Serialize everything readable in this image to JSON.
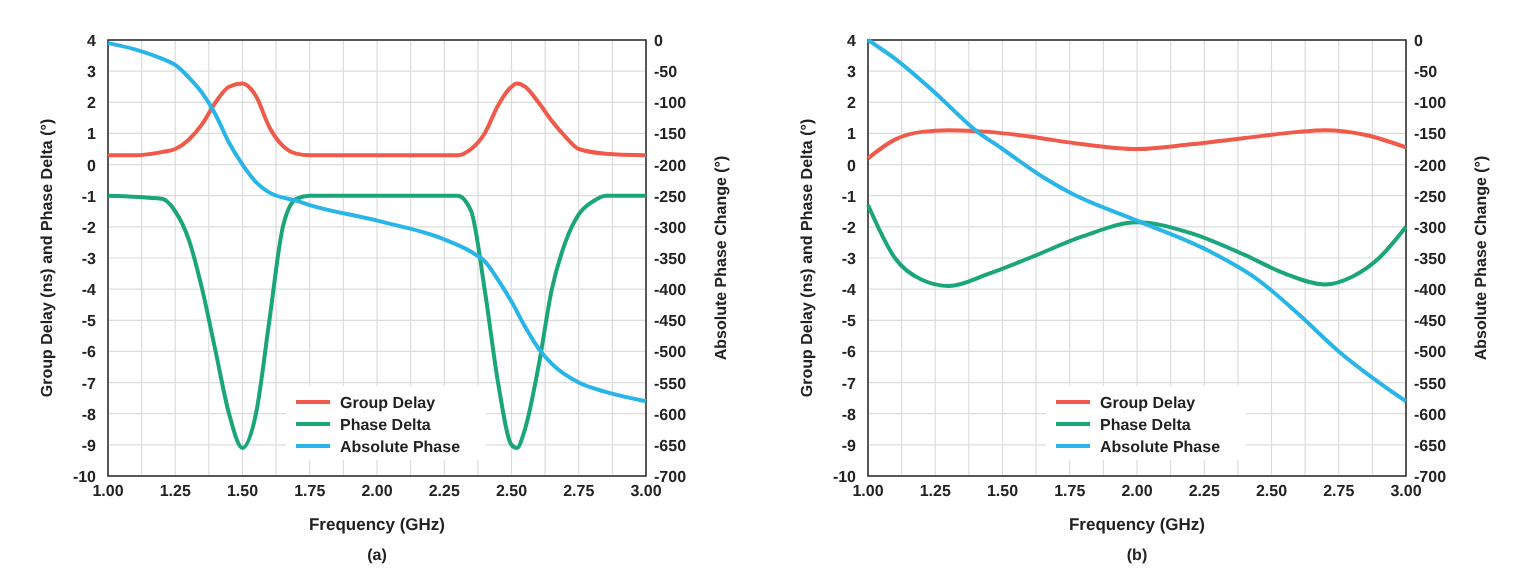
{
  "chart_data": [
    {
      "type": "line",
      "xlabel": "Frequency (GHz)",
      "ylabel": "Group Delay (ns) and Phase Delta (°)",
      "y2label": "Absolute Phase Change (°)",
      "annotations": [
        "(a)"
      ],
      "grid": true,
      "legend": "bottom",
      "line_style": "solid",
      "xlim": [
        1,
        3
      ],
      "xticks": [
        {
          "value": 1,
          "label": "1.00"
        },
        {
          "value": 1.125,
          "label": null
        },
        {
          "value": 1.25,
          "label": "1.25"
        },
        {
          "value": 1.375,
          "label": null
        },
        {
          "value": 1.5,
          "label": "1.50"
        },
        {
          "value": 1.625,
          "label": null
        },
        {
          "value": 1.75,
          "label": "1.75"
        },
        {
          "value": 1.875,
          "label": null
        },
        {
          "value": 2,
          "label": "2.00"
        },
        {
          "value": 2.125,
          "label": null
        },
        {
          "value": 2.25,
          "label": "2.25"
        },
        {
          "value": 2.375,
          "label": null
        },
        {
          "value": 2.5,
          "label": "2.50"
        },
        {
          "value": 2.625,
          "label": null
        },
        {
          "value": 2.75,
          "label": "2.75"
        },
        {
          "value": 2.875,
          "label": null
        },
        {
          "value": 3,
          "label": "3.00"
        }
      ],
      "ylim": [
        -10,
        4
      ],
      "yticks": [
        -10,
        -9,
        -8,
        -7,
        -6,
        -5,
        -4,
        -3,
        -2,
        -1,
        0,
        1,
        2,
        3,
        4
      ],
      "y2lim": [
        -700,
        0
      ],
      "y2ticks": [
        -700,
        -650,
        -600,
        -550,
        -500,
        -450,
        -400,
        -350,
        -300,
        -250,
        -200,
        -150,
        -100,
        -50,
        0
      ],
      "series": [
        {
          "name": "Group Delay",
          "color": "#f05a4a",
          "x": [
            1,
            1.1,
            1.2,
            1.25,
            1.3,
            1.35,
            1.4,
            1.45,
            1.5,
            1.55,
            1.6,
            1.65,
            1.7,
            1.75,
            2.3,
            2.35,
            2.4,
            2.45,
            2.5,
            2.52,
            2.55,
            2.6,
            2.65,
            2.7,
            2.75,
            2.85,
            3
          ],
          "values": [
            0.3,
            0.3,
            0.4,
            0.5,
            0.8,
            1.3,
            2,
            2.5,
            2.6,
            2.2,
            1.2,
            0.6,
            0.35,
            0.3,
            0.3,
            0.5,
            1,
            1.9,
            2.5,
            2.6,
            2.5,
            2,
            1.4,
            0.9,
            0.5,
            0.35,
            0.3
          ]
        },
        {
          "name": "Phase Delta",
          "color": "#1aa57a",
          "x": [
            1,
            1.2,
            1.25,
            1.3,
            1.35,
            1.4,
            1.45,
            1.5,
            1.55,
            1.6,
            1.65,
            1.7,
            1.75,
            2.3,
            2.35,
            2.4,
            2.45,
            2.5,
            2.52,
            2.55,
            2.6,
            2.65,
            2.7,
            2.75,
            2.8,
            2.85,
            3
          ],
          "values": [
            -1,
            -1.1,
            -1.5,
            -2.4,
            -4,
            -6,
            -8,
            -9.1,
            -8,
            -5,
            -2,
            -1.1,
            -1,
            -1,
            -1.5,
            -4,
            -7,
            -9,
            -9.1,
            -8.5,
            -6.5,
            -4,
            -2.5,
            -1.6,
            -1.2,
            -1,
            -1
          ]
        },
        {
          "name": "Absolute Phase",
          "color": "#29b5e8",
          "axis": "y2",
          "x": [
            1,
            1.1,
            1.2,
            1.25,
            1.3,
            1.35,
            1.4,
            1.45,
            1.5,
            1.55,
            1.6,
            1.7,
            1.75,
            2,
            2.25,
            2.35,
            2.4,
            2.45,
            2.5,
            2.55,
            2.6,
            2.65,
            2.75,
            2.85,
            3
          ],
          "values": [
            -5,
            -15,
            -30,
            -40,
            -60,
            -85,
            -120,
            -165,
            -200,
            -228,
            -245,
            -258,
            -265,
            -290,
            -320,
            -340,
            -355,
            -385,
            -420,
            -460,
            -495,
            -520,
            -550,
            -565,
            -580
          ]
        }
      ]
    },
    {
      "type": "line",
      "xlabel": "Frequency (GHz)",
      "ylabel": "Group Delay (ns) and Phase Delta (°)",
      "y2label": "Absolute Phase Change (°)",
      "annotations": [
        "(b)"
      ],
      "grid": true,
      "legend": "bottom",
      "line_style": "solid",
      "xlim": [
        1,
        3
      ],
      "xticks": [
        {
          "value": 1,
          "label": "1.00"
        },
        {
          "value": 1.125,
          "label": null
        },
        {
          "value": 1.25,
          "label": "1.25"
        },
        {
          "value": 1.375,
          "label": null
        },
        {
          "value": 1.5,
          "label": "1.50"
        },
        {
          "value": 1.625,
          "label": null
        },
        {
          "value": 1.75,
          "label": "1.75"
        },
        {
          "value": 1.875,
          "label": null
        },
        {
          "value": 2,
          "label": "2.00"
        },
        {
          "value": 2.125,
          "label": null
        },
        {
          "value": 2.25,
          "label": "2.25"
        },
        {
          "value": 2.375,
          "label": null
        },
        {
          "value": 2.5,
          "label": "2.50"
        },
        {
          "value": 2.625,
          "label": null
        },
        {
          "value": 2.75,
          "label": "2.75"
        },
        {
          "value": 2.875,
          "label": null
        },
        {
          "value": 3,
          "label": "3.00"
        }
      ],
      "ylim": [
        -10,
        4
      ],
      "yticks": [
        -10,
        -9,
        -8,
        -7,
        -6,
        -5,
        -4,
        -3,
        -2,
        -1,
        0,
        1,
        2,
        3,
        4
      ],
      "y2lim": [
        -700,
        0
      ],
      "y2ticks": [
        -700,
        -650,
        -600,
        -550,
        -500,
        -450,
        -400,
        -350,
        -300,
        -250,
        -200,
        -150,
        -100,
        -50,
        0
      ],
      "series": [
        {
          "name": "Group Delay",
          "color": "#f05a4a",
          "x": [
            1,
            1.1,
            1.2,
            1.3,
            1.45,
            1.6,
            1.8,
            2,
            2.2,
            2.4,
            2.6,
            2.7,
            2.85,
            3
          ],
          "values": [
            0.2,
            0.8,
            1.05,
            1.1,
            1.05,
            0.9,
            0.65,
            0.5,
            0.65,
            0.85,
            1.05,
            1.1,
            0.95,
            0.55
          ]
        },
        {
          "name": "Phase Delta",
          "color": "#1aa57a",
          "x": [
            1,
            1.1,
            1.2,
            1.3,
            1.45,
            1.6,
            1.8,
            2,
            2.2,
            2.4,
            2.55,
            2.7,
            2.8,
            2.9,
            3
          ],
          "values": [
            -1.3,
            -3,
            -3.7,
            -3.9,
            -3.5,
            -3,
            -2.3,
            -1.85,
            -2.2,
            -2.9,
            -3.5,
            -3.85,
            -3.6,
            -3,
            -2
          ]
        },
        {
          "name": "Absolute Phase",
          "color": "#29b5e8",
          "axis": "y2",
          "x": [
            1,
            1.1,
            1.25,
            1.4,
            1.5,
            1.65,
            1.75,
            2,
            2.25,
            2.45,
            2.6,
            2.75,
            2.9,
            3
          ],
          "values": [
            0,
            -30,
            -85,
            -145,
            -175,
            -220,
            -245,
            -290,
            -335,
            -385,
            -440,
            -500,
            -550,
            -580
          ]
        }
      ]
    }
  ]
}
